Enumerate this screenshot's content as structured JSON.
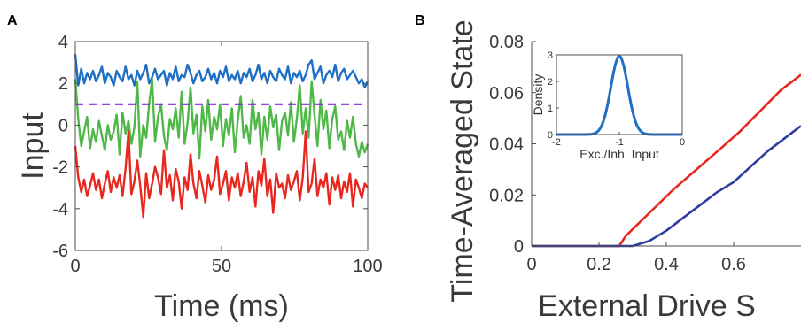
{
  "panels": {
    "a": {
      "letter": "A"
    },
    "b": {
      "letter": "B"
    }
  },
  "chart_data": [
    {
      "type": "line",
      "xlabel": "Time (ms)",
      "ylabel": "Input",
      "xlim": [
        0,
        100
      ],
      "ylim": [
        -6,
        4
      ],
      "xticks": [
        0,
        50,
        100
      ],
      "yticks": [
        -6,
        -4,
        -2,
        0,
        2,
        4
      ],
      "xtick_labels": [
        "0",
        "50",
        "100"
      ],
      "ytick_labels": [
        "-6",
        "-4",
        "-2",
        "0",
        "2",
        "4"
      ],
      "grid": false,
      "threshold": {
        "y": 1,
        "style": "dashed",
        "color": "#8a2be2"
      },
      "series": [
        {
          "color": "#1f6fc5",
          "values": [
            3.4,
            1.9,
            2.7,
            2.0,
            2.5,
            2.2,
            2.6,
            2.1,
            2.4,
            2.8,
            2.0,
            2.5,
            2.3,
            1.9,
            2.6,
            2.3,
            2.1,
            2.8,
            2.2,
            2.4,
            1.9,
            2.6,
            2.2,
            2.5,
            2.9,
            2.0,
            2.3,
            2.7,
            2.2,
            2.4,
            2.6,
            1.9,
            2.5,
            2.2,
            2.8,
            2.1,
            2.4,
            2.3,
            2.9,
            2.5,
            2.0,
            2.4,
            2.6,
            2.1,
            2.3,
            2.7,
            2.2,
            2.5,
            2.0,
            2.6,
            2.3,
            2.8,
            2.1,
            2.4,
            2.2,
            2.6,
            2.0,
            2.5,
            2.3,
            2.7,
            2.1,
            2.4,
            2.9,
            2.2,
            2.5,
            2.0,
            2.6,
            2.3,
            2.1,
            2.7,
            2.4,
            2.2,
            2.8,
            2.0,
            2.5,
            2.3,
            2.6,
            2.1,
            2.4,
            2.9,
            3.1,
            2.2,
            2.5,
            2.8,
            2.0,
            2.4,
            2.6,
            2.3,
            2.9,
            2.1,
            2.5,
            2.7,
            2.2,
            2.4,
            2.6,
            2.3,
            2.0,
            2.2,
            1.8,
            2.1
          ]
        },
        {
          "color": "#4fb848",
          "values": [
            2.2,
            0.3,
            -1.0,
            -0.3,
            0.4,
            -1.1,
            -0.2,
            -0.8,
            0.2,
            -0.5,
            -1.2,
            0.0,
            -0.7,
            -0.3,
            0.5,
            -1.4,
            0.6,
            -0.4,
            0.2,
            -0.9,
            -0.1,
            2.1,
            -1.5,
            0.0,
            -0.6,
            1.0,
            2.2,
            -0.8,
            0.4,
            1.0,
            -0.5,
            -1.2,
            0.3,
            -0.2,
            0.8,
            -0.6,
            1.6,
            -0.9,
            0.1,
            1.8,
            -0.4,
            0.5,
            -1.6,
            0.9,
            -0.3,
            1.2,
            -0.7,
            0.4,
            -0.2,
            1.0,
            -1.0,
            0.3,
            -0.5,
            0.8,
            -1.3,
            0.2,
            1.4,
            -0.6,
            0.0,
            -0.9,
            1.2,
            -0.2,
            0.6,
            -1.4,
            0.4,
            -0.7,
            0.9,
            -0.1,
            0.5,
            -1.2,
            0.2,
            0.6,
            -0.5,
            1.1,
            -0.8,
            0.3,
            1.9,
            -0.4,
            0.8,
            -0.6,
            2.1,
            0.5,
            -1.0,
            1.2,
            -0.2,
            0.7,
            -1.1,
            0.3,
            0.9,
            -0.7,
            -0.3,
            -1.2,
            0.2,
            -0.6,
            0.4,
            -0.9,
            -1.5,
            -0.8,
            -1.3,
            -0.9
          ]
        },
        {
          "color": "#e8281e",
          "values": [
            -1.0,
            -2.5,
            -3.2,
            -2.6,
            -3.4,
            -2.9,
            -2.3,
            -3.1,
            -2.6,
            -3.5,
            -2.8,
            -2.2,
            -3.2,
            -2.5,
            -3.0,
            -2.4,
            -3.4,
            -2.1,
            -0.3,
            -3.3,
            -2.7,
            -1.7,
            -2.9,
            -4.4,
            -2.3,
            -3.5,
            -2.8,
            -2.0,
            -2.5,
            -3.3,
            -1.2,
            -3.0,
            -2.4,
            -3.6,
            -2.1,
            -2.7,
            -4.0,
            -2.5,
            -3.1,
            -1.4,
            -2.8,
            -3.5,
            -2.2,
            -2.9,
            -3.7,
            -2.4,
            -3.1,
            -2.6,
            -1.5,
            -3.3,
            -2.8,
            -2.2,
            -3.6,
            -2.5,
            -3.0,
            -2.3,
            -3.4,
            -2.7,
            -1.8,
            -3.2,
            -2.5,
            -3.9,
            -2.2,
            -2.9,
            -1.6,
            -3.4,
            -2.6,
            -4.2,
            -2.3,
            -3.0,
            -2.8,
            -3.5,
            -2.4,
            -3.1,
            -2.7,
            -2.2,
            -3.6,
            -2.5,
            -0.3,
            -3.2,
            -2.8,
            -1.6,
            -3.4,
            -2.6,
            -3.0,
            -2.3,
            -3.8,
            -2.5,
            -3.1,
            -2.4,
            -3.5,
            -2.7,
            -3.2,
            -2.3,
            -3.9,
            -2.6,
            -3.0,
            -3.5,
            -2.8,
            -3.0
          ]
        }
      ]
    },
    {
      "type": "line",
      "xlabel": "External Drive S",
      "ylabel": "Time-Averaged State",
      "xlim": [
        0,
        0.8
      ],
      "ylim": [
        0,
        0.08
      ],
      "xticks": [
        0,
        0.2,
        0.4,
        0.6
      ],
      "yticks": [
        0,
        0.02,
        0.04,
        0.06,
        0.08
      ],
      "xtick_labels": [
        "0",
        "0.2",
        "0.4",
        "0.6"
      ],
      "ytick_labels": [
        "0",
        "0.02",
        "0.04",
        "0.06",
        "0.08"
      ],
      "grid": false,
      "series": [
        {
          "color": "#e8281e",
          "points": [
            [
              0,
              0
            ],
            [
              0.26,
              0
            ],
            [
              0.28,
              0.004
            ],
            [
              0.35,
              0.013
            ],
            [
              0.42,
              0.022
            ],
            [
              0.49,
              0.03
            ],
            [
              0.56,
              0.038
            ],
            [
              0.62,
              0.045
            ],
            [
              0.68,
              0.053
            ],
            [
              0.74,
              0.061
            ],
            [
              0.8,
              0.067
            ]
          ]
        },
        {
          "color": "#2e3c9e",
          "points": [
            [
              0,
              0
            ],
            [
              0.3,
              0
            ],
            [
              0.35,
              0.002
            ],
            [
              0.4,
              0.006
            ],
            [
              0.45,
              0.011
            ],
            [
              0.5,
              0.016
            ],
            [
              0.55,
              0.021
            ],
            [
              0.6,
              0.025
            ],
            [
              0.65,
              0.031
            ],
            [
              0.7,
              0.037
            ],
            [
              0.75,
              0.042
            ],
            [
              0.8,
              0.047
            ]
          ]
        }
      ],
      "inset": {
        "type": "line",
        "xlabel": "Exc./Inh. Input",
        "ylabel": "Density",
        "xlim": [
          -2,
          0
        ],
        "ylim": [
          0,
          3
        ],
        "xticks": [
          -2,
          -1,
          0
        ],
        "yticks": [
          0,
          1,
          2,
          3
        ],
        "xtick_labels": [
          "-2",
          "-1",
          "0"
        ],
        "ytick_labels": [
          "0",
          "1",
          "2",
          "3"
        ],
        "series": [
          {
            "color": "#1f6fc5",
            "distribution": "gaussian",
            "mean": -1,
            "sd": 0.135,
            "peak": 2.95
          }
        ]
      }
    }
  ]
}
